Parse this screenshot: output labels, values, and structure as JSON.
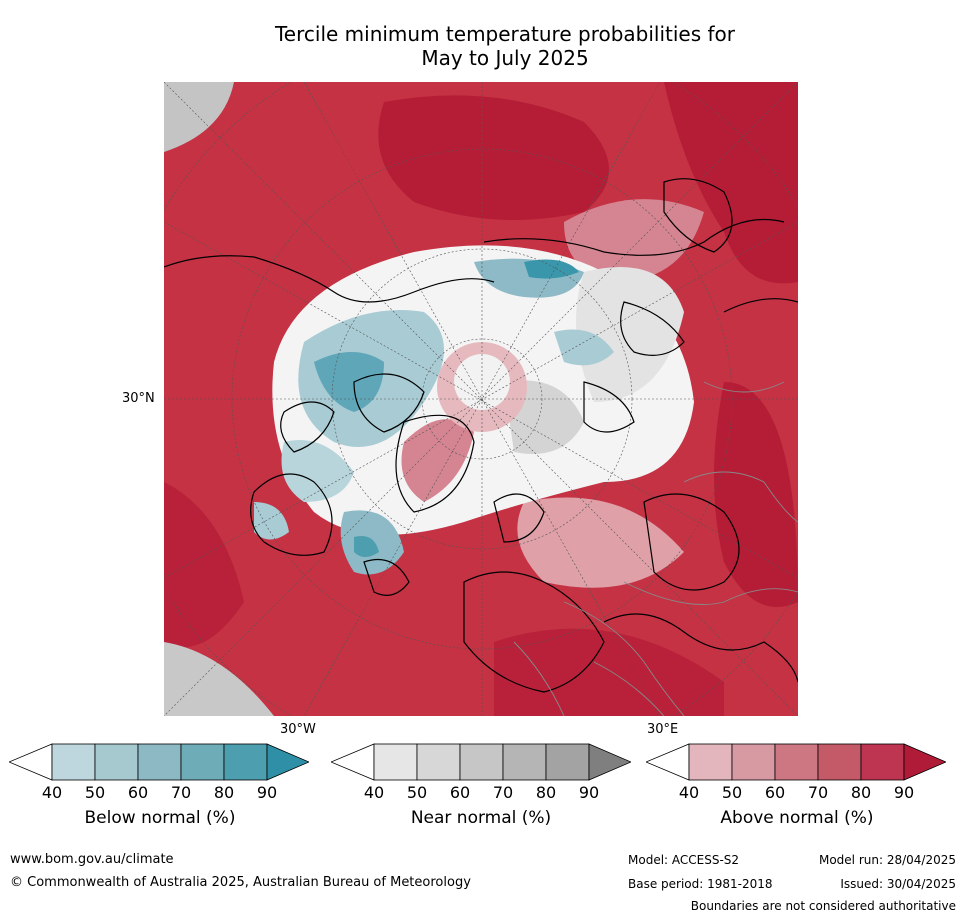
{
  "title_line1": "Tercile minimum temperature probabilities for",
  "title_line2": "May to July 2025",
  "map": {
    "projection": "north-polar-stereographic",
    "lat_label": "30°N",
    "lon_labels": [
      "30°W",
      "30°E"
    ],
    "colors": {
      "above": "#b51d36",
      "above_mid": "#c8485a",
      "above_light": "#dfa0a8",
      "near": "#e3e3e3",
      "near_dark": "#b8b8b8",
      "below_light": "#a8cbd4",
      "below": "#5fa7b8",
      "below_dark": "#3a97ab",
      "neutral": "#ffffff"
    }
  },
  "colorbars": [
    {
      "label": "Below normal (%)",
      "ticks": [
        "40",
        "50",
        "60",
        "70",
        "80",
        "90"
      ],
      "colors": [
        "#bed7de",
        "#a6c9d0",
        "#8db9c4",
        "#6eacb8",
        "#4d9eae",
        "#2e8fa6"
      ]
    },
    {
      "label": "Near normal (%)",
      "ticks": [
        "40",
        "50",
        "60",
        "70",
        "80",
        "90"
      ],
      "colors": [
        "#e6e6e6",
        "#d7d7d7",
        "#c6c6c6",
        "#b5b5b5",
        "#a3a3a3",
        "#7f7f7f"
      ]
    },
    {
      "label": "Above normal (%)",
      "ticks": [
        "40",
        "50",
        "60",
        "70",
        "80",
        "90"
      ],
      "colors": [
        "#e2b6bc",
        "#d79aa3",
        "#cc7782",
        "#c45968",
        "#bd3550",
        "#b01b38"
      ]
    }
  ],
  "footer": {
    "website": "www.bom.gov.au/climate",
    "copyright": "© Commonwealth of Australia 2025, Australian Bureau of Meteorology",
    "model": "Model: ACCESS-S2",
    "model_run": "Model run: 28/04/2025",
    "base_period": "Base period: 1981-2018",
    "issued": "Issued: 30/04/2025",
    "disclaimer": "Boundaries are not considered authoritative"
  }
}
